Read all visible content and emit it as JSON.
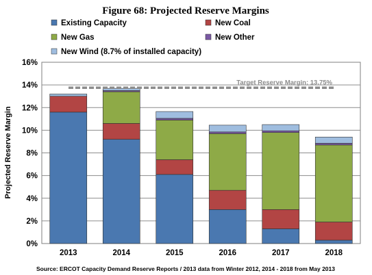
{
  "chart_data": {
    "type": "bar",
    "stacked": true,
    "title": "Figure 68:  Projected Reserve Margins",
    "ylabel": "Projected Reserve Margin",
    "xlabel": "",
    "categories": [
      "2013",
      "2014",
      "2015",
      "2016",
      "2017",
      "2018"
    ],
    "ylim": [
      0,
      16
    ],
    "yticks": [
      "0%",
      "2%",
      "4%",
      "6%",
      "8%",
      "10%",
      "12%",
      "14%",
      "16%"
    ],
    "grid": true,
    "legend_position": "top",
    "series": [
      {
        "name": "Existing Capacity",
        "color": "#4a78b0",
        "values": [
          11.6,
          9.2,
          6.1,
          3.0,
          1.3,
          0.3
        ]
      },
      {
        "name": "New Coal",
        "color": "#b24544",
        "values": [
          1.4,
          1.4,
          1.3,
          1.7,
          1.7,
          1.6
        ]
      },
      {
        "name": "New Gas",
        "color": "#8eaa47",
        "values": [
          0.0,
          2.8,
          3.5,
          5.0,
          6.8,
          6.8
        ]
      },
      {
        "name": "New Other",
        "color": "#7a59a4",
        "values": [
          0.0,
          0.1,
          0.15,
          0.15,
          0.15,
          0.15
        ]
      },
      {
        "name": "New Wind (8.7% of installed capacity)",
        "color": "#9fbddf",
        "values": [
          0.2,
          0.2,
          0.6,
          0.6,
          0.55,
          0.55
        ]
      }
    ],
    "reference_line": {
      "value": 13.75,
      "label": "Target Reserve Margin: 13.75%",
      "color": "#8c8c8c"
    },
    "source": "Source:  ERCOT Capacity Demand Reserve Reports / 2013 data from Winter 2012, 2014 - 2018 from May 2013"
  }
}
